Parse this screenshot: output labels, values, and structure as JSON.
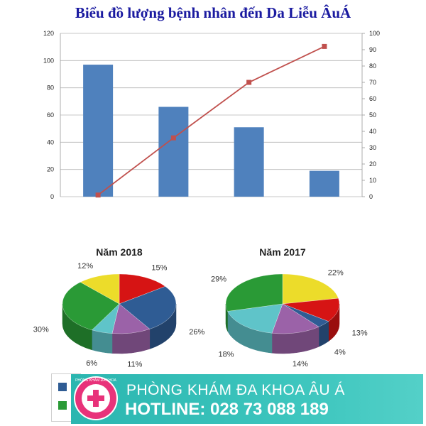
{
  "header": {
    "title": "Biểu đồ lượng bệnh nhân đến Da Liễu ÂuÁ"
  },
  "chart_data": [
    {
      "type": "bar",
      "title": "Biểu đồ lượng bệnh nhân đến Da Liễu ÂuÁ",
      "categories": [
        "",
        "",
        "",
        ""
      ],
      "series": [
        {
          "type": "bar",
          "values": [
            97,
            66,
            51,
            19
          ],
          "axis": "left",
          "color": "#4f81bd"
        },
        {
          "type": "line",
          "values": [
            1,
            36,
            70,
            92
          ],
          "axis": "right",
          "color": "#c0504d"
        }
      ],
      "ylim": [
        0,
        120
      ],
      "yticks": [
        "0",
        "20",
        "40",
        "60",
        "80",
        "100",
        "120"
      ],
      "y2lim": [
        0,
        100
      ],
      "y2ticks": [
        "0",
        "10",
        "20",
        "30",
        "40",
        "50",
        "60",
        "70",
        "80",
        "90",
        "100"
      ],
      "grid": true
    },
    {
      "type": "pie",
      "title": "Năm 2018",
      "slices": [
        {
          "label": "15%",
          "value": 15,
          "color": "#d61414"
        },
        {
          "label": "26%",
          "value": 26,
          "color": "#2f5c94"
        },
        {
          "label": "11%",
          "value": 11,
          "color": "#9b62a8"
        },
        {
          "label": "6%",
          "value": 6,
          "color": "#5fc4c9"
        },
        {
          "label": "30%",
          "value": 30,
          "color": "#2a9a36"
        },
        {
          "label": "12%",
          "value": 12,
          "color": "#ecdc2a"
        }
      ]
    },
    {
      "type": "pie",
      "title": "Năm 2017",
      "slices": [
        {
          "label": "22%",
          "value": 22,
          "color": "#ecdc2a"
        },
        {
          "label": "13%",
          "value": 13,
          "color": "#d61414"
        },
        {
          "label": "4%",
          "value": 4,
          "color": "#2f5c94"
        },
        {
          "label": "14%",
          "value": 14,
          "color": "#9b62a8"
        },
        {
          "label": "18%",
          "value": 18,
          "color": "#5fc4c9"
        },
        {
          "label": "29%",
          "value": 29,
          "color": "#2a9a36"
        }
      ]
    }
  ],
  "legend": {
    "colors": [
      "#2f5c94",
      "#2a9a36"
    ]
  },
  "banner": {
    "clinic_name": "PHÒNG KHÁM ĐA KHOA ÂU Á",
    "hotline": "HOTLINE: 028 73 088 189",
    "logo_text": "PHÒNG KHÁM ĐA KHOA"
  }
}
